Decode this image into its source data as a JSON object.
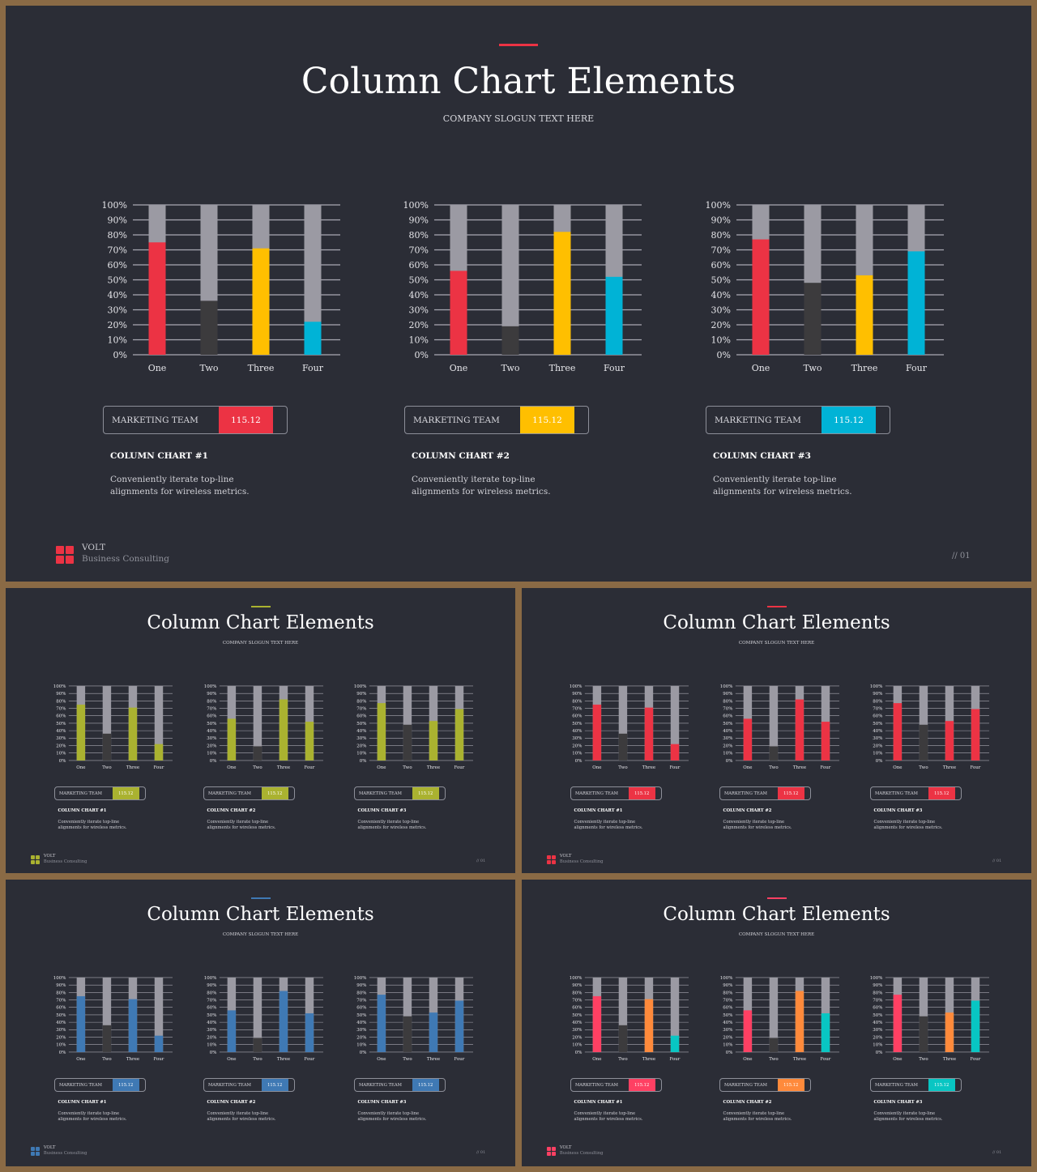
{
  "title": "Column Chart Elements",
  "subtitle": "COMPANY SLOGUN TEXT HERE",
  "brand": {
    "name": "VOLT",
    "tagline": "Business Consulting"
  },
  "page_number_main": "// 01",
  "page_number_small": "// 01",
  "card_label": "MARKETING TEAM",
  "card_value": "115.12",
  "caption_text": "Conveniently iterate top-line alignments for wireless metrics.",
  "colors": {
    "background": "#2b2d36",
    "frame": "#8a6a45",
    "track": "#9b9aa3",
    "dark_bar": "#3c3b3d",
    "red": "#ec3344",
    "yellow": "#ffbf00",
    "blue": "#00b3d6",
    "olive": "#aab230",
    "steel_blue": "#3f79b4",
    "pink": "#ff4063",
    "orange": "#ff8a3b",
    "teal": "#08c6c3"
  },
  "charts": [
    {
      "caption": "COLUMN CHART #1",
      "chart_data": {
        "type": "bar",
        "categories": [
          "One",
          "Two",
          "Three",
          "Four"
        ],
        "values": [
          75,
          36,
          71,
          22
        ],
        "ylim": [
          0,
          100
        ],
        "yticks": [
          "0%",
          "10%",
          "20%",
          "30%",
          "40%",
          "50%",
          "60%",
          "70%",
          "80%",
          "90%",
          "100%"
        ]
      }
    },
    {
      "caption": "COLUMN CHART #2",
      "chart_data": {
        "type": "bar",
        "categories": [
          "One",
          "Two",
          "Three",
          "Four"
        ],
        "values": [
          56,
          19,
          82,
          52
        ],
        "ylim": [
          0,
          100
        ],
        "yticks": [
          "0%",
          "10%",
          "20%",
          "30%",
          "40%",
          "50%",
          "60%",
          "70%",
          "80%",
          "90%",
          "100%"
        ]
      }
    },
    {
      "caption": "COLUMN CHART #3",
      "chart_data": {
        "type": "bar",
        "categories": [
          "One",
          "Two",
          "Three",
          "Four"
        ],
        "values": [
          77,
          48,
          53,
          69
        ],
        "ylim": [
          0,
          100
        ],
        "yticks": [
          "0%",
          "10%",
          "20%",
          "30%",
          "40%",
          "50%",
          "60%",
          "70%",
          "80%",
          "90%",
          "100%"
        ]
      }
    }
  ],
  "slides": [
    {
      "id": "main",
      "accent": "#ec3344",
      "logo_color": "#ec3344",
      "bar_colors": [
        [
          "#ec3344",
          "#3c3b3d",
          "#ffbf00",
          "#00b3d6"
        ],
        [
          "#ec3344",
          "#3c3b3d",
          "#ffbf00",
          "#00b3d6"
        ],
        [
          "#ec3344",
          "#3c3b3d",
          "#ffbf00",
          "#00b3d6"
        ]
      ],
      "card_colors": [
        "#ec3344",
        "#ffbf00",
        "#00b3d6"
      ]
    },
    {
      "id": "s1",
      "accent": "#aab230",
      "logo_color": "#aab230",
      "bar_colors": [
        [
          "#aab230",
          "#3c3b3d",
          "#aab230",
          "#aab230"
        ],
        [
          "#aab230",
          "#3c3b3d",
          "#aab230",
          "#aab230"
        ],
        [
          "#aab230",
          "#3c3b3d",
          "#aab230",
          "#aab230"
        ]
      ],
      "card_colors": [
        "#aab230",
        "#aab230",
        "#aab230"
      ]
    },
    {
      "id": "s2",
      "accent": "#ec3344",
      "logo_color": "#ec3344",
      "bar_colors": [
        [
          "#ec3344",
          "#3c3b3d",
          "#ec3344",
          "#ec3344"
        ],
        [
          "#ec3344",
          "#3c3b3d",
          "#ec3344",
          "#ec3344"
        ],
        [
          "#ec3344",
          "#3c3b3d",
          "#ec3344",
          "#ec3344"
        ]
      ],
      "card_colors": [
        "#ec3344",
        "#ec3344",
        "#ec3344"
      ]
    },
    {
      "id": "s3",
      "accent": "#3f79b4",
      "logo_color": "#3f79b4",
      "bar_colors": [
        [
          "#3f79b4",
          "#3c3b3d",
          "#3f79b4",
          "#3f79b4"
        ],
        [
          "#3f79b4",
          "#3c3b3d",
          "#3f79b4",
          "#3f79b4"
        ],
        [
          "#3f79b4",
          "#3c3b3d",
          "#3f79b4",
          "#3f79b4"
        ]
      ],
      "card_colors": [
        "#3f79b4",
        "#3f79b4",
        "#3f79b4"
      ]
    },
    {
      "id": "s4",
      "accent": "#ff4063",
      "logo_color": "#ff4063",
      "bar_colors": [
        [
          "#ff4063",
          "#3c3b3d",
          "#ff8a3b",
          "#08c6c3"
        ],
        [
          "#ff4063",
          "#3c3b3d",
          "#ff8a3b",
          "#08c6c3"
        ],
        [
          "#ff4063",
          "#3c3b3d",
          "#ff8a3b",
          "#08c6c3"
        ]
      ],
      "card_colors": [
        "#ff4063",
        "#ff8a3b",
        "#08c6c3"
      ]
    }
  ]
}
